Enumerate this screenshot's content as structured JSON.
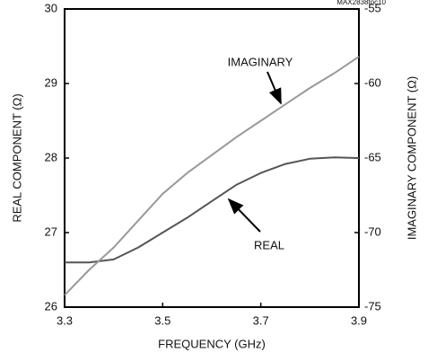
{
  "chart_data": {
    "type": "line",
    "figure_id": "MAX2838toc10",
    "xlabel": "FREQUENCY (GHz)",
    "ylabel": "REAL COMPONENT (Ω)",
    "y2label": "IMAGINARY COMPONENT (Ω)",
    "x": [
      3.3,
      3.35,
      3.4,
      3.45,
      3.5,
      3.55,
      3.6,
      3.65,
      3.7,
      3.75,
      3.8,
      3.85,
      3.9
    ],
    "series": [
      {
        "name": "REAL",
        "color": "#555555",
        "axis": "y",
        "values": [
          26.6,
          26.6,
          26.64,
          26.8,
          27.0,
          27.2,
          27.42,
          27.64,
          27.8,
          27.92,
          27.99,
          28.01,
          28.0
        ]
      },
      {
        "name": "IMAGINARY",
        "color": "#999999",
        "axis": "y2",
        "values": [
          -74.2,
          -72.5,
          -71.0,
          -69.2,
          -67.4,
          -66.0,
          -64.8,
          -63.6,
          -62.5,
          -61.4,
          -60.3,
          -59.3,
          -58.2
        ]
      }
    ],
    "xlim": [
      3.3,
      3.9
    ],
    "xticks": [
      3.3,
      3.5,
      3.7,
      3.9
    ],
    "ylim": [
      26,
      30
    ],
    "yticks": [
      26,
      27,
      28,
      29,
      30
    ],
    "y2lim": [
      -75,
      -55
    ],
    "y2ticks": [
      -75,
      -70,
      -65,
      -60,
      -55
    ]
  }
}
